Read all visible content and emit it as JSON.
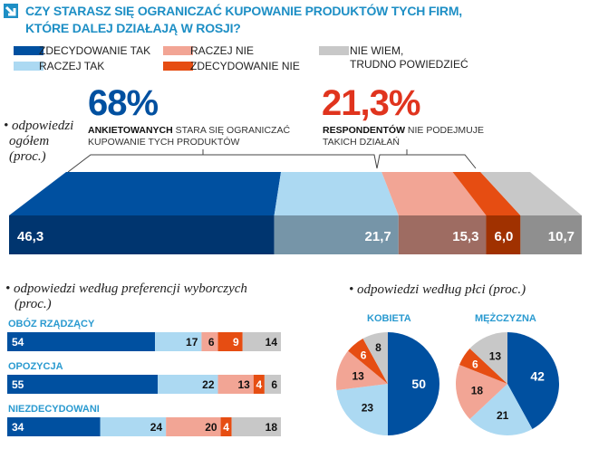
{
  "title": [
    "CZY STARASZ SIĘ OGRANICZAĆ KUPOWANIE PRODUKTÓW TYCH FIRM,",
    "KTÓRE DALEJ DZIAŁAJĄ W ROSJI?"
  ],
  "legend": [
    {
      "label": "ZDECYDOWANIE TAK",
      "color": "#0050a0"
    },
    {
      "label": "RACZEJ TAK",
      "color": "#acd9f2"
    },
    {
      "label": "RACZEJ NIE",
      "color": "#f2a595"
    },
    {
      "label": "ZDECYDOWANIE NIE",
      "color": "#e64d12"
    },
    {
      "label": "NIE WIEM, TRUDNO POWIEDZIEĆ",
      "label_lines": [
        "NIE WIEM,",
        "TRUDNO POWIEDZIEĆ"
      ],
      "color": "#c8c8c8"
    }
  ],
  "highlights": {
    "yes": {
      "value": "68%",
      "bold": "ANKIETOWANYCH",
      "text": " STARA SIĘ OGRANICZAĆ",
      "text2": "KUPOWANIE TYCH PRODUKTÓW",
      "color": "#0050a0"
    },
    "no": {
      "value": "21,3%",
      "bold": "RESPONDENTÓW",
      "text": " NIE PODEJMUJE",
      "text2": "TAKICH DZIAŁAŃ",
      "color": "#e0341e"
    }
  },
  "chart_data": [
    {
      "type": "bar",
      "stacked": true,
      "title": "odpowiedzi ogółem (proc.)",
      "title_lines": [
        "odpowiedzi",
        "ogółem",
        "(proc.)"
      ],
      "categories": [
        "ogółem"
      ],
      "series": [
        {
          "name": "ZDECYDOWANIE TAK",
          "values": [
            46.3
          ],
          "label": "46,3"
        },
        {
          "name": "RACZEJ TAK",
          "values": [
            21.7
          ],
          "label": "21,7"
        },
        {
          "name": "RACZEJ NIE",
          "values": [
            15.3
          ],
          "label": "15,3"
        },
        {
          "name": "ZDECYDOWANIE NIE",
          "values": [
            6.0
          ],
          "label": "6,0"
        },
        {
          "name": "NIE WIEM, TRUDNO POWIEDZIEĆ",
          "values": [
            10.7
          ],
          "label": "10,7"
        }
      ]
    },
    {
      "type": "bar",
      "stacked": true,
      "orientation": "horizontal",
      "title": "odpowiedzi według preferencji wyborczych",
      "subtitle": "(proc.)",
      "categories": [
        "OBÓZ RZĄDZĄCY",
        "OPOZYCJA",
        "NIEZDECYDOWANI"
      ],
      "series": [
        {
          "name": "ZDECYDOWANIE TAK",
          "values": [
            54,
            55,
            34
          ]
        },
        {
          "name": "RACZEJ TAK",
          "values": [
            17,
            22,
            24
          ]
        },
        {
          "name": "RACZEJ NIE",
          "values": [
            6,
            13,
            20
          ]
        },
        {
          "name": "ZDECYDOWANIE NIE",
          "values": [
            9,
            4,
            4
          ]
        },
        {
          "name": "NIE WIEM, TRUDNO POWIEDZIEĆ",
          "values": [
            14,
            6,
            18
          ]
        }
      ]
    },
    {
      "type": "pie",
      "title": "odpowiedzi według płci (proc.)",
      "pies": [
        {
          "label": "KOBIETA",
          "values": [
            50,
            23,
            13,
            6,
            8
          ]
        },
        {
          "label": "MĘŻCZYZNA",
          "values": [
            42,
            21,
            18,
            6,
            13
          ]
        }
      ],
      "slice_names": [
        "ZDECYDOWANIE TAK",
        "RACZEJ TAK",
        "RACZEJ NIE",
        "ZDECYDOWANIE NIE",
        "NIE WIEM, TRUDNO POWIEDZIEĆ"
      ]
    }
  ]
}
